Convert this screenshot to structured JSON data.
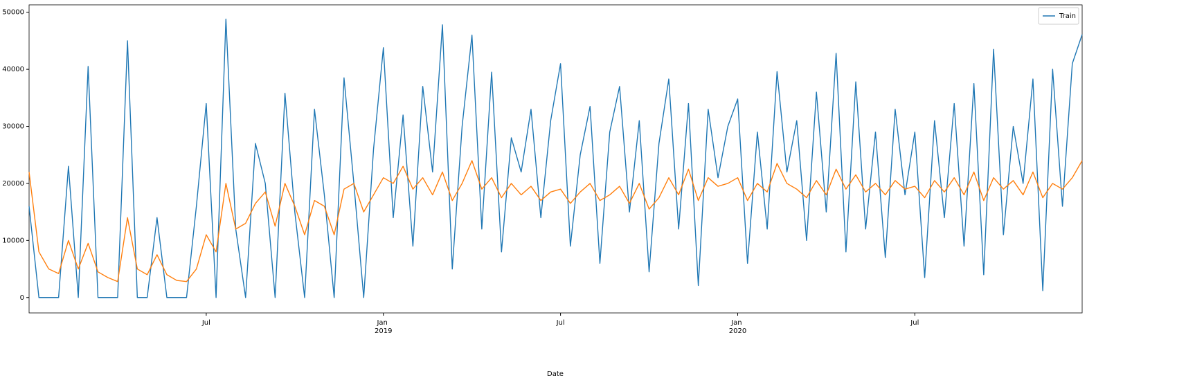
{
  "chart_data": {
    "type": "line",
    "xlabel": "Date",
    "categories": [
      null,
      null,
      null,
      null,
      null,
      null,
      null,
      null,
      null,
      null,
      null,
      null,
      null,
      null,
      null,
      null,
      null,
      null,
      "Jul",
      null,
      null,
      null,
      null,
      null,
      null,
      null,
      null,
      null,
      null,
      null,
      null,
      null,
      null,
      null,
      null,
      null,
      "Jan 2019",
      null,
      null,
      null,
      null,
      null,
      null,
      null,
      null,
      null,
      null,
      null,
      null,
      null,
      null,
      null,
      null,
      null,
      "Jul",
      null,
      null,
      null,
      null,
      null,
      null,
      null,
      null,
      null,
      null,
      null,
      null,
      null,
      null,
      null,
      null,
      null,
      "Jan 2020",
      null,
      null,
      null,
      null,
      null,
      null,
      null,
      null,
      null,
      null,
      null,
      null,
      null,
      null,
      null,
      null,
      null,
      "Jul",
      null,
      null,
      null,
      null,
      null,
      null,
      null,
      null,
      null,
      null,
      null,
      null,
      null,
      null,
      null,
      null,
      null
    ],
    "series": [
      {
        "name": "Train",
        "color": "#1f77b4",
        "values": [
          16000,
          0,
          0,
          0,
          23000,
          0,
          40500,
          0,
          0,
          0,
          45000,
          0,
          0,
          14000,
          0,
          0,
          0,
          16000,
          34000,
          0,
          48800,
          12000,
          0,
          27000,
          20000,
          0,
          35800,
          15000,
          0,
          33000,
          18000,
          0,
          38500,
          20000,
          0,
          26000,
          43800,
          14000,
          32000,
          9000,
          37000,
          22000,
          47800,
          5000,
          30000,
          46000,
          12000,
          39500,
          8000,
          28000,
          22000,
          33000,
          14000,
          31000,
          41000,
          9000,
          25000,
          33500,
          6000,
          29000,
          37000,
          15000,
          31000,
          4500,
          27000,
          38300,
          12000,
          34000,
          2100,
          33000,
          21000,
          30000,
          34800,
          6000,
          29000,
          12000,
          39600,
          22000,
          31000,
          10000,
          36000,
          15000,
          42800,
          8000,
          37800,
          12000,
          29000,
          7000,
          33000,
          18000,
          29000,
          3500,
          31000,
          14000,
          34000,
          9000,
          37500,
          4000,
          43500,
          11000,
          30000,
          20000,
          38300,
          1200,
          40000,
          16000,
          41000,
          46100
        ]
      },
      {
        "color": "#ff7f0e",
        "values": [
          22000,
          8000,
          5000,
          4200,
          10000,
          5000,
          9500,
          4500,
          3500,
          2800,
          14000,
          5000,
          4000,
          7500,
          4000,
          3000,
          2800,
          5000,
          11000,
          8000,
          20000,
          12000,
          13000,
          16500,
          18500,
          12500,
          20000,
          16000,
          11000,
          17000,
          16000,
          11000,
          19000,
          20000,
          15000,
          18000,
          21000,
          20000,
          23000,
          19000,
          21000,
          18000,
          22000,
          17000,
          20000,
          24000,
          19000,
          21000,
          17500,
          20000,
          18000,
          19500,
          17000,
          18500,
          19000,
          16500,
          18500,
          20000,
          17000,
          18000,
          19500,
          16500,
          20000,
          15500,
          17500,
          21000,
          18000,
          22500,
          17000,
          21000,
          19500,
          20000,
          21000,
          17000,
          20000,
          18500,
          23500,
          20000,
          19000,
          17500,
          20500,
          18000,
          22500,
          19000,
          21500,
          18500,
          20000,
          18000,
          20500,
          19000,
          19500,
          17500,
          20500,
          18500,
          21000,
          18000,
          22000,
          17000,
          21000,
          19000,
          20500,
          18000,
          22000,
          17500,
          20000,
          19000,
          21000,
          24000
        ]
      }
    ],
    "ylim": [
      -2700,
      51300
    ],
    "yticks": [
      0,
      10000,
      20000,
      30000,
      40000,
      50000
    ],
    "grid": false,
    "legend": "upper right"
  }
}
